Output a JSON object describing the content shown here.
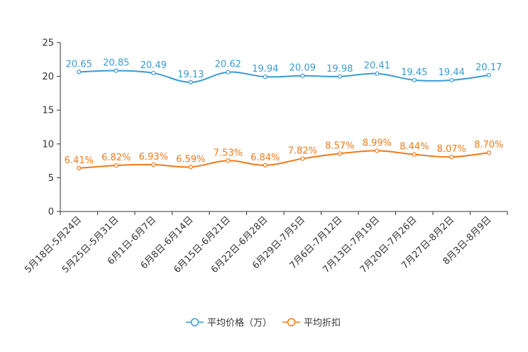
{
  "chart_data": {
    "type": "line",
    "title": "",
    "xlabel": "",
    "ylabel": "",
    "ylim": [
      0,
      25
    ],
    "yticks": [
      0,
      5,
      10,
      15,
      20,
      25
    ],
    "grid": false,
    "legend_position": "bottom-center",
    "categories": [
      "5月18日-5月24日",
      "5月25日-5月31日",
      "6月1日-6月7日",
      "6月8日-6月14日",
      "6月15日-6月21日",
      "6月22日-6月28日",
      "6月29日-7月5日",
      "7月6日-7月12日",
      "7月13日-7月19日",
      "7月20日-7月26日",
      "7月27日-8月2日",
      "8月3日-8月9日"
    ],
    "series": [
      {
        "name": "平均价格（万）",
        "color": "#3a9bd2",
        "values": [
          20.65,
          20.85,
          20.49,
          19.13,
          20.62,
          19.94,
          20.09,
          19.98,
          20.41,
          19.45,
          19.44,
          20.17
        ],
        "labels": [
          "20.65",
          "20.85",
          "20.49",
          "19.13",
          "20.62",
          "19.94",
          "20.09",
          "19.98",
          "20.41",
          "19.45",
          "19.44",
          "20.17"
        ]
      },
      {
        "name": "平均折扣",
        "color": "#f07a1a",
        "values": [
          6.41,
          6.82,
          6.93,
          6.59,
          7.53,
          6.84,
          7.82,
          8.57,
          8.99,
          8.44,
          8.07,
          8.7
        ],
        "labels": [
          "6.41%",
          "6.82%",
          "6.93%",
          "6.59%",
          "7.53%",
          "6.84%",
          "7.82%",
          "8.57%",
          "8.99%",
          "8.44%",
          "8.07%",
          "8.70%"
        ]
      }
    ]
  }
}
